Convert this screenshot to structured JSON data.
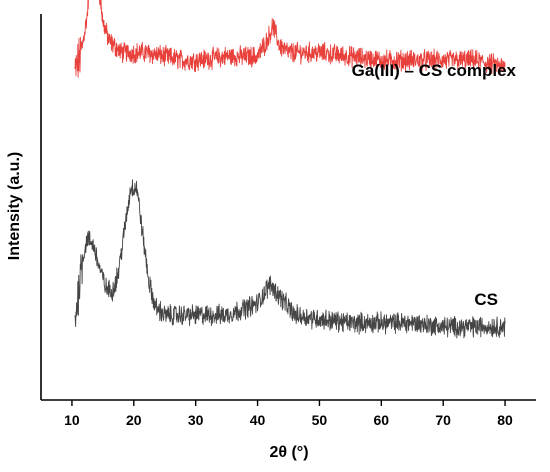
{
  "chart_data": {
    "type": "line",
    "xlabel": "2θ (°)",
    "ylabel": "Intensity (a.u.)",
    "xlim": [
      5,
      85
    ],
    "xticks": [
      10,
      20,
      30,
      40,
      50,
      60,
      70,
      80
    ],
    "y_ticks_shown": false,
    "grid": false,
    "series": [
      {
        "name": "Ga(III) – CS complex",
        "color": "#e8413c",
        "x": [
          10.5,
          11.5,
          12.5,
          13.0,
          13.5,
          14.0,
          15.0,
          16.0,
          18.0,
          20.0,
          22.0,
          25.0,
          28.0,
          30.0,
          35.0,
          40.0,
          41.5,
          42.5,
          43.5,
          45.0,
          50.0,
          55.0,
          60.0,
          65.0,
          70.0,
          75.0,
          78.0,
          80.0
        ],
        "y": [
          0.85,
          0.9,
          1.0,
          1.12,
          1.22,
          1.12,
          0.98,
          0.93,
          0.9,
          0.9,
          0.9,
          0.89,
          0.88,
          0.88,
          0.89,
          0.89,
          0.93,
          0.97,
          0.92,
          0.9,
          0.9,
          0.89,
          0.88,
          0.88,
          0.88,
          0.88,
          0.87,
          0.86
        ]
      },
      {
        "name": "CS",
        "color": "#454545",
        "x": [
          10.5,
          11.5,
          12.5,
          13.5,
          14.5,
          15.5,
          16.5,
          17.5,
          18.5,
          19.5,
          20.5,
          21.5,
          22.5,
          23.5,
          25.0,
          28.0,
          30.0,
          35.0,
          40.0,
          42.0,
          44.0,
          46.0,
          50.0,
          55.0,
          60.0,
          65.0,
          70.0,
          75.0,
          80.0
        ],
        "y": [
          0.2,
          0.35,
          0.42,
          0.4,
          0.34,
          0.29,
          0.28,
          0.33,
          0.44,
          0.55,
          0.55,
          0.42,
          0.3,
          0.24,
          0.22,
          0.22,
          0.22,
          0.22,
          0.25,
          0.3,
          0.26,
          0.22,
          0.21,
          0.2,
          0.2,
          0.2,
          0.19,
          0.19,
          0.19
        ]
      }
    ]
  }
}
